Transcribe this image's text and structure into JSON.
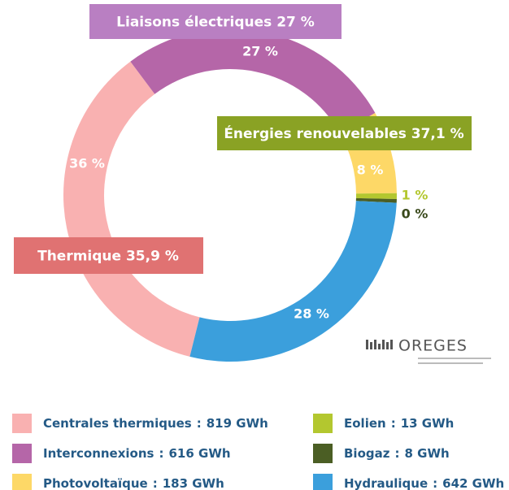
{
  "chart_data": {
    "type": "donut",
    "categories": [
      "Centrales thermiques",
      "Interconnexions",
      "Photovoltaïque",
      "Eolien",
      "Biogaz",
      "Hydraulique"
    ],
    "values": [
      819,
      616,
      183,
      13,
      8,
      642
    ],
    "value_labels": [
      "36 %",
      "27 %",
      "8 %",
      "1 %",
      "0 %",
      "28 %"
    ],
    "legend_value_labels": [
      "819 GWh",
      "616 GWh",
      "183 GWh",
      "13 GWh",
      "8 GWh",
      "642 GWh"
    ],
    "legend_separator": ":",
    "colors": [
      "#f9b1b1",
      "#b566a8",
      "#fdd867",
      "#b3c72f",
      "#4b5e24",
      "#3b9fdc"
    ],
    "groups": [
      {
        "label": "Liaisons électriques 27 %",
        "color": "#b97fc2"
      },
      {
        "label": "Énergies renouvelables 37,1 %",
        "color": "#8aa224"
      },
      {
        "label": "Thermique 35,9 %",
        "color": "#e07272"
      }
    ],
    "logo": "OREGES"
  }
}
